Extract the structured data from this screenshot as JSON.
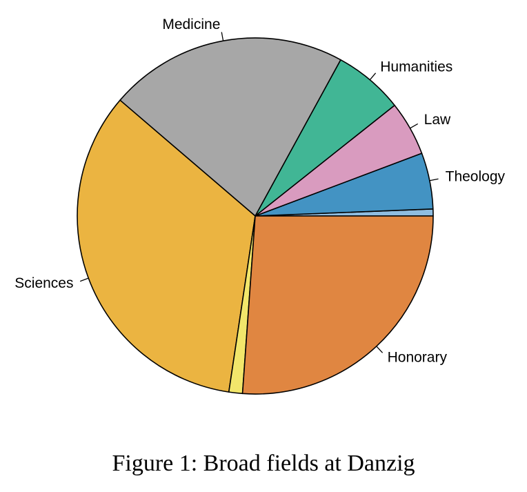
{
  "caption": "Figure 1: Broad fields at Danzig",
  "chart_data": {
    "type": "pie",
    "title": "",
    "start_angle_deg": 0,
    "direction": "counterclockwise",
    "border_color": "#000000",
    "slices": [
      {
        "label": "",
        "value": 0.63,
        "color": "#8fbde0"
      },
      {
        "label": "Theology",
        "value": 5.1,
        "color": "#4393c3"
      },
      {
        "label": "Law",
        "value": 4.95,
        "color": "#d99bbf"
      },
      {
        "label": "Humanities",
        "value": 6.35,
        "color": "#41b695"
      },
      {
        "label": "Medicine",
        "value": 21.7,
        "color": "#a7a7a7"
      },
      {
        "label": "Sciences",
        "value": 33.9,
        "color": "#ebb441"
      },
      {
        "label": "",
        "value": 1.23,
        "color": "#f2e66b"
      },
      {
        "label": "Honorary",
        "value": 26.14,
        "color": "#e08641"
      }
    ]
  }
}
